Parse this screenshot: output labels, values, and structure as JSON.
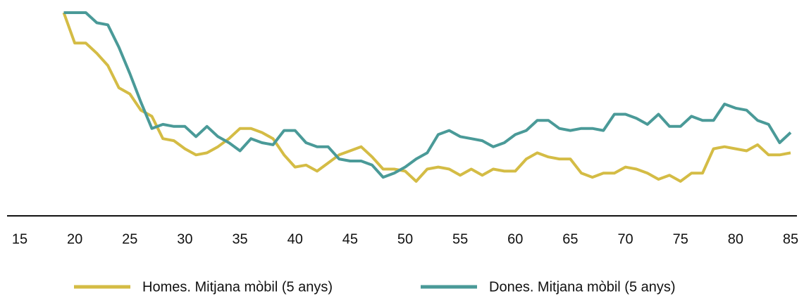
{
  "chart_data": {
    "type": "line",
    "x": [
      19,
      20,
      21,
      22,
      23,
      24,
      25,
      26,
      27,
      28,
      29,
      30,
      31,
      32,
      33,
      34,
      35,
      36,
      37,
      38,
      39,
      40,
      41,
      42,
      43,
      44,
      45,
      46,
      47,
      48,
      49,
      50,
      51,
      52,
      53,
      54,
      55,
      56,
      57,
      58,
      59,
      60,
      61,
      62,
      63,
      64,
      65,
      66,
      67,
      68,
      69,
      70,
      71,
      72,
      73,
      74,
      75,
      76,
      77,
      78,
      79,
      80,
      81,
      82,
      83,
      84,
      85
    ],
    "series": [
      {
        "name": "Homes. Mitjana mòbil (5 anys)",
        "color": "#d4bc45",
        "values": [
          100,
          85,
          85,
          80,
          74,
          63,
          60,
          52,
          49,
          38,
          37,
          33,
          30,
          31,
          34,
          38,
          43,
          43,
          41,
          38,
          30,
          24,
          25,
          22,
          26,
          30,
          32,
          34,
          29,
          23,
          23,
          22,
          17,
          23,
          24,
          23,
          20,
          23,
          20,
          23,
          22,
          22,
          28,
          31,
          29,
          28,
          28,
          21,
          19,
          21,
          21,
          24,
          23,
          21,
          18,
          20,
          17,
          21,
          21,
          33,
          34,
          33,
          32,
          35,
          30,
          30,
          31
        ]
      },
      {
        "name": "Dones. Mitjana mòbil (5 anys)",
        "color": "#4a9a98",
        "values": [
          100,
          100,
          100,
          95,
          94,
          83,
          70,
          56,
          43,
          45,
          44,
          44,
          39,
          44,
          39,
          36,
          32,
          38,
          36,
          35,
          42,
          42,
          36,
          34,
          34,
          28,
          27,
          27,
          25,
          19,
          21,
          24,
          28,
          31,
          40,
          42,
          39,
          38,
          37,
          34,
          36,
          40,
          42,
          47,
          47,
          43,
          42,
          43,
          43,
          42,
          50,
          50,
          48,
          45,
          50,
          44,
          44,
          49,
          47,
          47,
          55,
          53,
          52,
          47,
          45,
          36,
          41
        ]
      }
    ],
    "xlim": [
      15,
      85
    ],
    "xticks": [
      15,
      20,
      25,
      30,
      35,
      40,
      45,
      50,
      55,
      60,
      65,
      70,
      75,
      80,
      85
    ],
    "ylim": [
      0,
      100
    ],
    "legend": "bottom"
  }
}
